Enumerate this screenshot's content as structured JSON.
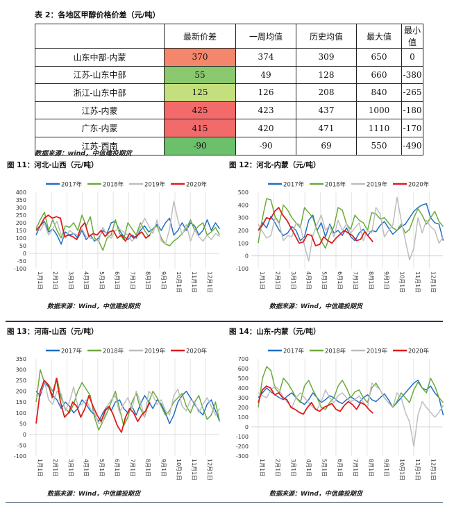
{
  "table": {
    "title": "表 2：各地区甲醇价格价差（元/吨）",
    "columns": [
      "",
      "最新价差",
      "一周均值",
      "历史均值",
      "最大值",
      "最小值"
    ],
    "rows": [
      {
        "name": "山东中部-内蒙",
        "latest": "370",
        "week_avg": "374",
        "hist_avg": "309",
        "max": "650",
        "min": "0",
        "color": "#f4876b"
      },
      {
        "name": "江苏-山东中部",
        "latest": "55",
        "week_avg": "49",
        "hist_avg": "128",
        "max": "660",
        "min": "-380",
        "color": "#8bc86e"
      },
      {
        "name": "浙江-山东中部",
        "latest": "125",
        "week_avg": "126",
        "hist_avg": "208",
        "max": "840",
        "min": "-265",
        "color": "#c4df7d"
      },
      {
        "name": "江苏-内蒙",
        "latest": "425",
        "week_avg": "423",
        "hist_avg": "437",
        "max": "1000",
        "min": "-180",
        "color": "#f26a6a"
      },
      {
        "name": "广东-内蒙",
        "latest": "415",
        "week_avg": "420",
        "hist_avg": "471",
        "max": "1110",
        "min": "-170",
        "color": "#f26b6b"
      },
      {
        "name": "江苏-西南",
        "latest": "-90",
        "week_avg": "-90",
        "hist_avg": "69",
        "max": "550",
        "min": "-490",
        "color": "#6cbf6b"
      }
    ],
    "source": "数据来源：wind，中信建投期货"
  },
  "legend": [
    "2017年",
    "2018年",
    "2019年",
    "2020年"
  ],
  "series_colors": [
    "#1f6fc5",
    "#6aaa3a",
    "#bdbdbd",
    "#e01b1b"
  ],
  "months": [
    "1月1日",
    "2月1日",
    "3月1日",
    "4月1日",
    "5月1日",
    "6月1日",
    "7月1日",
    "8月1日",
    "9月1日",
    "10月1日",
    "11月1日",
    "12月1日"
  ],
  "chart_data": [
    {
      "type": "line",
      "title": "图 11：河北-山西（元/吨）",
      "source": "数据来源：Wind，中信建投期货",
      "ylim": [
        -100,
        400
      ],
      "yticks": [
        -100,
        -50,
        0,
        50,
        100,
        150,
        200,
        250,
        300,
        350,
        400
      ],
      "series": [
        {
          "name": "2017年",
          "values": [
            120,
            180,
            210,
            140,
            160,
            120,
            60,
            140,
            120,
            130,
            100,
            150,
            90,
            120,
            80,
            100,
            150,
            130,
            200,
            210,
            150,
            110,
            90,
            120,
            100,
            150,
            180,
            140,
            160,
            190,
            150,
            200,
            230,
            120,
            150,
            200,
            150,
            200,
            180,
            120,
            150,
            220,
            150,
            200,
            160
          ]
        },
        {
          "name": "2018年",
          "values": [
            160,
            220,
            270,
            150,
            220,
            150,
            100,
            180,
            170,
            200,
            150,
            250,
            180,
            240,
            100,
            80,
            20,
            100,
            120,
            220,
            130,
            90,
            200,
            160,
            120,
            200,
            150,
            110,
            160,
            180,
            100,
            60,
            50,
            80,
            100,
            130,
            160,
            220,
            150,
            180,
            200,
            120,
            140,
            170,
            120
          ]
        },
        {
          "name": "2019年",
          "values": [
            180,
            150,
            200,
            120,
            160,
            210,
            120,
            100,
            150,
            130,
            120,
            160,
            110,
            100,
            90,
            80,
            170,
            120,
            100,
            150,
            160,
            140,
            120,
            80,
            110,
            170,
            230,
            180,
            130,
            220,
            80,
            60,
            160,
            340,
            220,
            120,
            190,
            80,
            150,
            110,
            80,
            120,
            90,
            130,
            110
          ]
        },
        {
          "name": "2020年",
          "values": [
            150,
            180,
            230,
            250,
            230,
            240,
            230,
            110,
            120,
            110,
            90,
            170,
            200,
            110,
            130,
            120,
            150,
            110,
            140,
            150,
            100,
            120,
            80,
            130,
            100,
            120,
            140,
            100,
            120
          ]
        }
      ]
    },
    {
      "type": "line",
      "title": "图 12：河北-内蒙（元/吨）",
      "source": "数据来源：Wind，中信建投期货",
      "ylim": [
        -100,
        500
      ],
      "yticks": [
        -100,
        0,
        100,
        200,
        300,
        400,
        500
      ],
      "series": [
        {
          "name": "2017年",
          "values": [
            200,
            260,
            220,
            310,
            260,
            200,
            160,
            180,
            230,
            200,
            120,
            150,
            280,
            320,
            200,
            260,
            150,
            250,
            180,
            200,
            160,
            220,
            150,
            120,
            180,
            210,
            160,
            200,
            190,
            240,
            270,
            220,
            170,
            200,
            230,
            250,
            300,
            350,
            380,
            400,
            410,
            300,
            260,
            250,
            120
          ]
        },
        {
          "name": "2018年",
          "values": [
            100,
            300,
            450,
            440,
            310,
            260,
            400,
            360,
            300,
            260,
            220,
            380,
            340,
            300,
            200,
            120,
            60,
            160,
            230,
            380,
            360,
            250,
            210,
            320,
            280,
            260,
            200,
            340,
            330,
            290,
            300,
            260,
            220,
            200,
            250,
            180,
            210,
            300,
            370,
            320,
            250,
            300,
            350,
            270,
            230
          ]
        },
        {
          "name": "2019年",
          "values": [
            250,
            190,
            140,
            160,
            300,
            250,
            120,
            160,
            150,
            260,
            240,
            80,
            -40,
            160,
            250,
            320,
            200,
            240,
            150,
            280,
            200,
            250,
            180,
            220,
            260,
            120,
            200,
            180,
            380,
            330,
            150,
            200,
            240,
            460,
            280,
            120,
            -30,
            60,
            300,
            180,
            280,
            230,
            200,
            100,
            150
          ]
        },
        {
          "name": "2020年",
          "values": [
            200,
            240,
            300,
            290,
            350,
            380,
            320,
            280,
            220,
            160,
            100,
            110,
            170,
            160,
            80,
            90,
            150,
            120,
            100,
            140,
            170,
            200,
            180,
            160,
            120,
            130,
            190,
            150,
            110
          ]
        }
      ]
    },
    {
      "type": "line",
      "title": "图 13：河南-山西（元/吨）",
      "source": "数据来源：Wind，中信建投期货",
      "ylim": [
        -100,
        350
      ],
      "yticks": [
        -100,
        -50,
        0,
        50,
        100,
        150,
        200,
        250,
        300,
        350
      ],
      "series": [
        {
          "name": "2017年",
          "values": [
            200,
            180,
            240,
            220,
            180,
            160,
            120,
            150,
            130,
            100,
            120,
            160,
            140,
            110,
            90,
            60,
            100,
            130,
            110,
            150,
            160,
            120,
            100,
            130,
            90,
            140,
            180,
            150,
            120,
            160,
            140,
            100,
            50,
            90,
            150,
            180,
            200,
            170,
            140,
            110,
            90,
            140,
            160,
            110,
            60
          ]
        },
        {
          "name": "2018年",
          "values": [
            150,
            300,
            240,
            230,
            200,
            260,
            170,
            120,
            100,
            140,
            200,
            240,
            210,
            180,
            80,
            20,
            60,
            100,
            150,
            200,
            120,
            40,
            80,
            150,
            190,
            120,
            80,
            150,
            200,
            170,
            130,
            90,
            110,
            150,
            170,
            190,
            130,
            100,
            150,
            180,
            120,
            70,
            90,
            150,
            60
          ]
        },
        {
          "name": "2019年",
          "values": [
            170,
            190,
            250,
            160,
            140,
            200,
            190,
            110,
            150,
            220,
            130,
            140,
            160,
            120,
            100,
            50,
            60,
            130,
            160,
            180,
            100,
            140,
            170,
            120,
            200,
            150,
            80,
            200,
            180,
            140,
            160,
            110,
            90,
            180,
            210,
            130,
            110,
            160,
            150,
            100,
            140,
            170,
            130,
            90,
            120
          ]
        },
        {
          "name": "2020年",
          "values": [
            50,
            200,
            250,
            230,
            170,
            260,
            150,
            80,
            100,
            150,
            130,
            80,
            120,
            180,
            130,
            90,
            60,
            110,
            130,
            90,
            40,
            10,
            80,
            120,
            100,
            60,
            90,
            110,
            150
          ]
        }
      ]
    },
    {
      "type": "line",
      "title": "图 14：山东-内蒙（元/吨）",
      "source": "数据来源：Wind，中信建投期货",
      "ylim": [
        -300,
        700
      ],
      "yticks": [
        -300,
        -200,
        -100,
        0,
        100,
        200,
        300,
        400,
        500,
        600,
        700
      ],
      "series": [
        {
          "name": "2017年",
          "values": [
            300,
            350,
            400,
            360,
            330,
            300,
            280,
            320,
            350,
            300,
            260,
            230,
            280,
            350,
            300,
            250,
            280,
            320,
            300,
            260,
            240,
            280,
            310,
            280,
            250,
            300,
            330,
            280,
            260,
            300,
            340,
            280,
            200,
            250,
            300,
            350,
            400,
            450,
            480,
            400,
            380,
            420,
            350,
            300,
            120
          ]
        },
        {
          "name": "2018年",
          "values": [
            200,
            500,
            620,
            580,
            400,
            350,
            500,
            450,
            380,
            300,
            250,
            420,
            480,
            380,
            300,
            200,
            180,
            250,
            300,
            420,
            480,
            400,
            300,
            360,
            380,
            300,
            250,
            400,
            450,
            380,
            300,
            250,
            200,
            260,
            350,
            300,
            250,
            380,
            460,
            400,
            350,
            500,
            420,
            300,
            250
          ]
        },
        {
          "name": "2019年",
          "values": [
            350,
            320,
            300,
            380,
            420,
            380,
            300,
            250,
            200,
            300,
            350,
            300,
            250,
            200,
            180,
            260,
            380,
            300,
            250,
            320,
            350,
            300,
            260,
            280,
            320,
            250,
            200,
            450,
            420,
            380,
            300,
            250,
            200,
            350,
            300,
            150,
            50,
            -200,
            120,
            260,
            200,
            150,
            100,
            150,
            220
          ]
        },
        {
          "name": "2020年",
          "values": [
            250,
            380,
            420,
            400,
            330,
            350,
            300,
            280,
            200,
            180,
            150,
            130,
            200,
            250,
            180,
            160,
            200,
            220,
            240,
            180,
            160,
            220,
            260,
            230,
            180,
            250,
            230,
            180,
            140
          ]
        }
      ]
    }
  ]
}
